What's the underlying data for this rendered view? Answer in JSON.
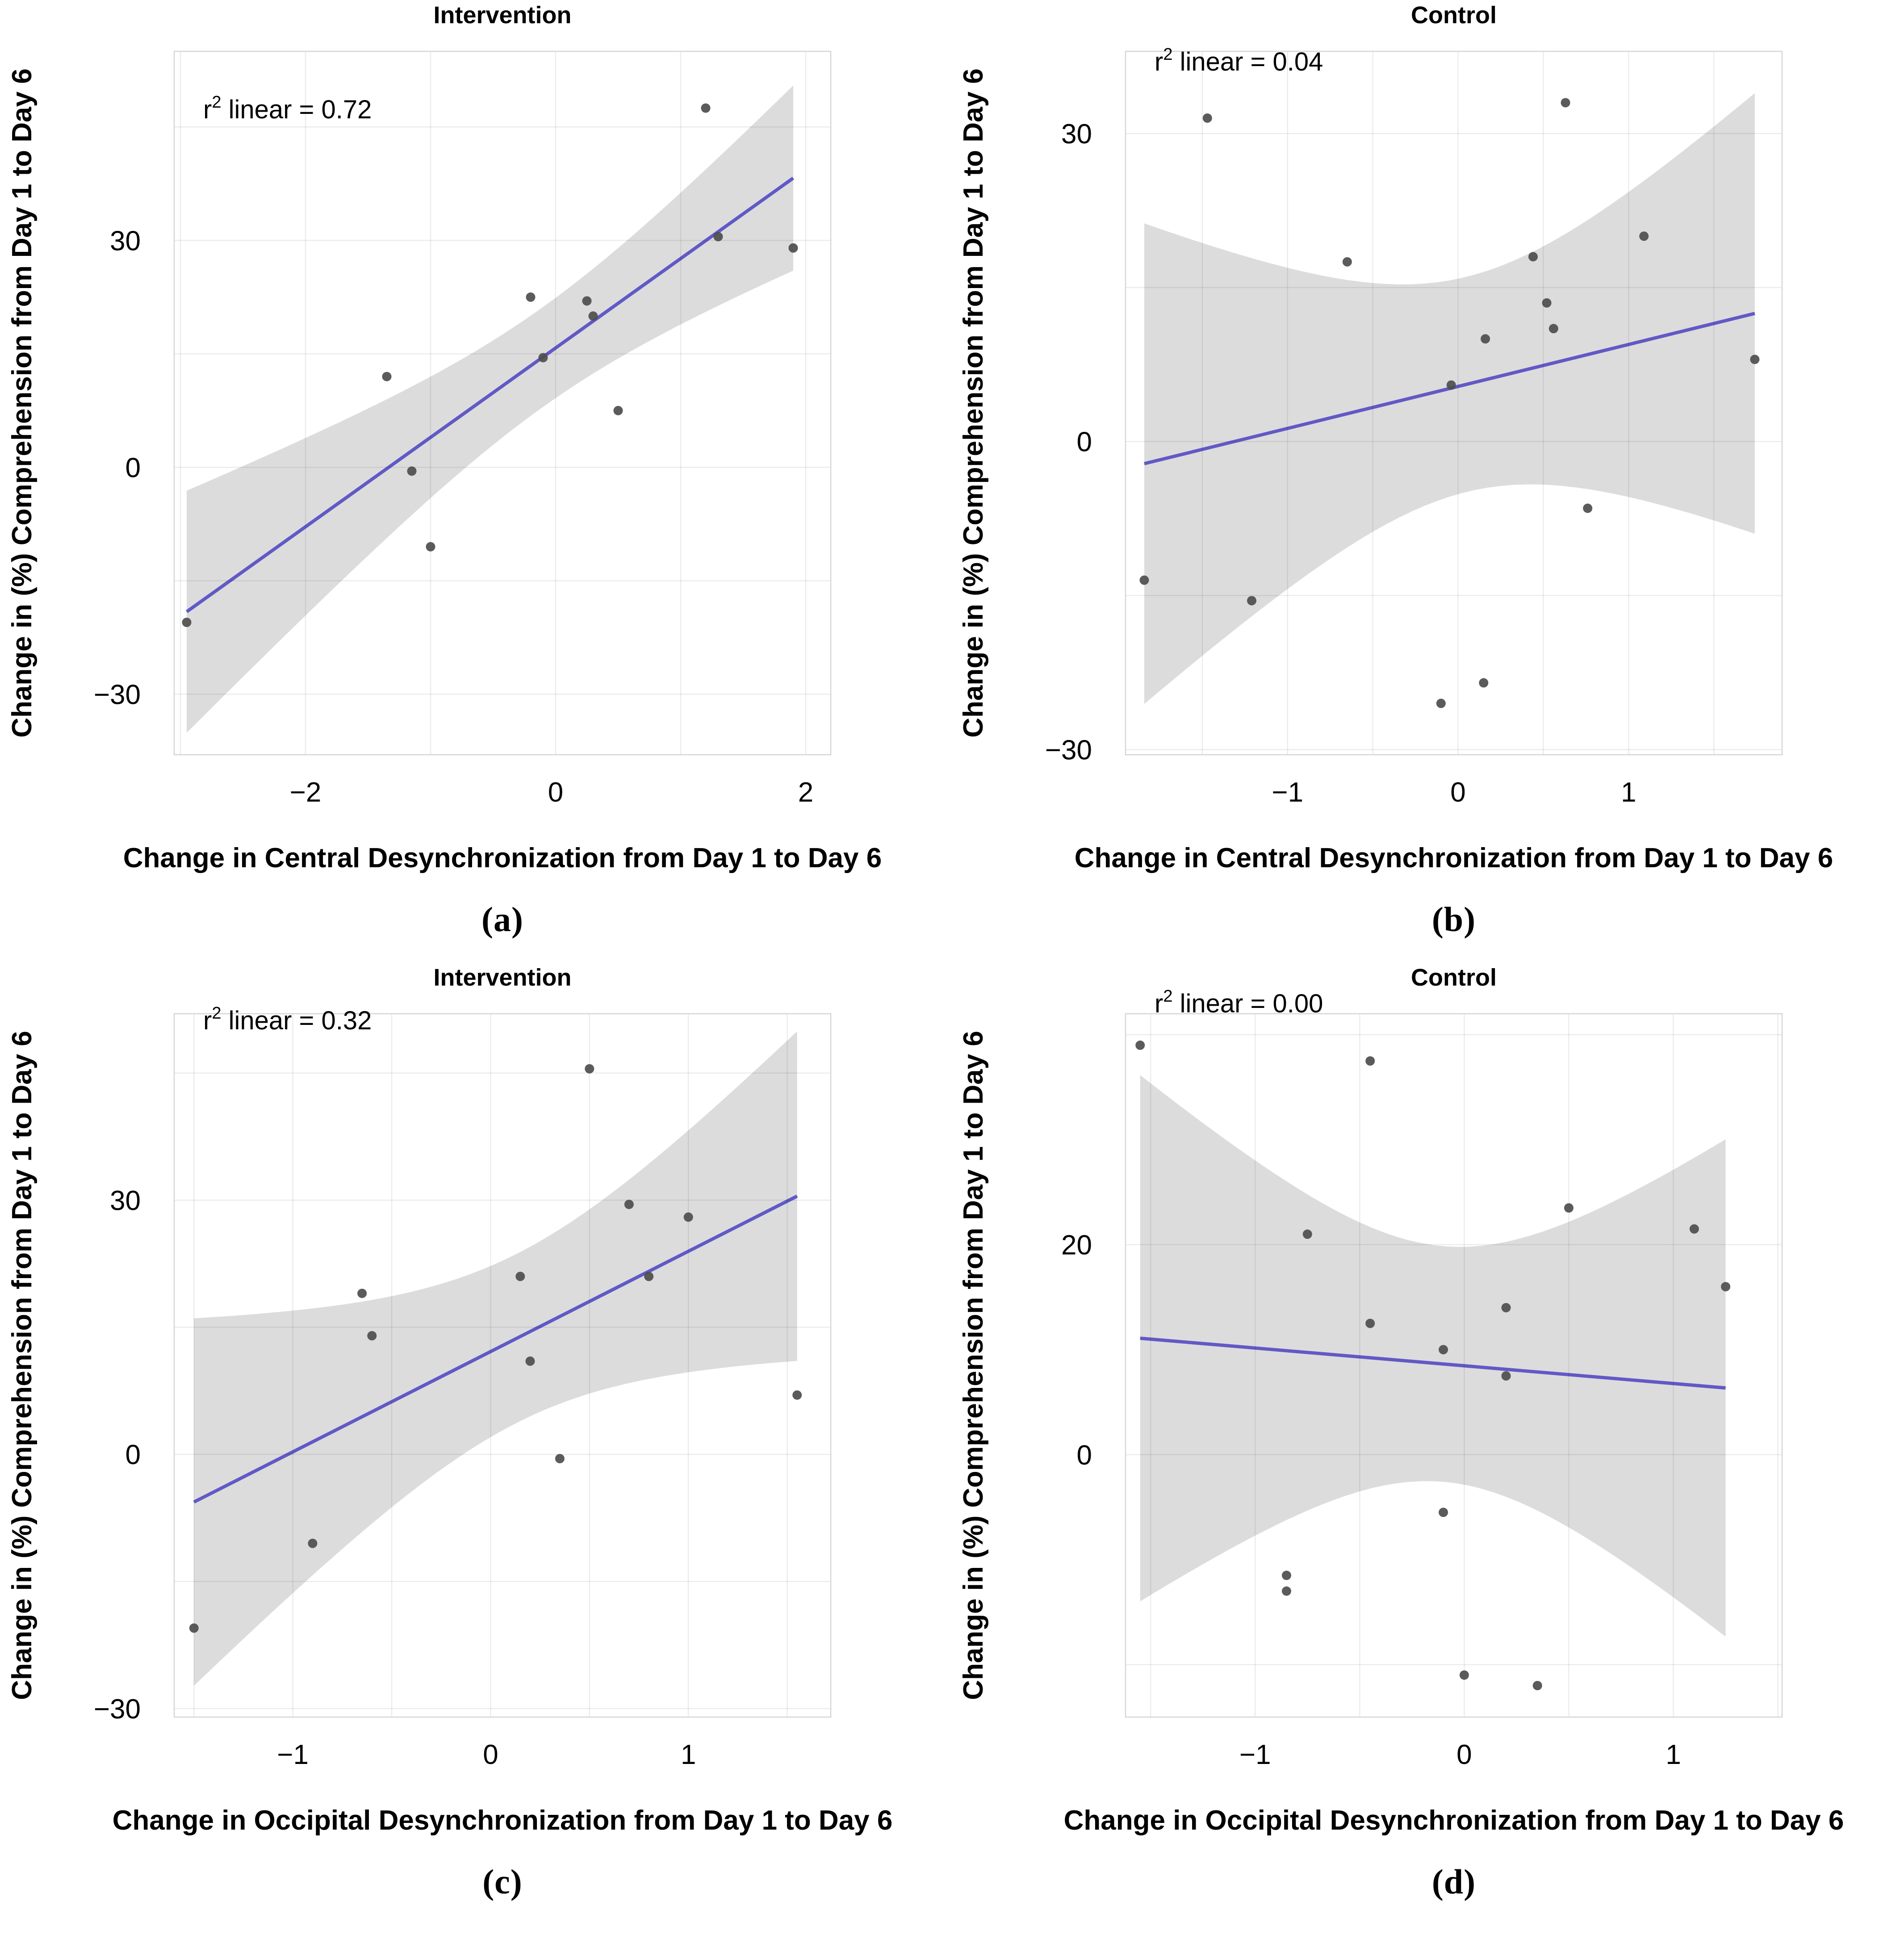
{
  "figure": {
    "background": "#ffffff",
    "colors": {
      "fit_line": "#6159c6",
      "point": "#4d4d4d",
      "ci_band": "#dcdcdc",
      "gridline_alpha": 0.075,
      "axis_frame": "#d6d6d6",
      "text": "#000000"
    }
  },
  "chart_data": [
    {
      "panel": "a",
      "type": "scatter",
      "title": "Intervention",
      "annotation": {
        "base": "r",
        "sup": "2",
        "rest": " linear = 0.72"
      },
      "r2": 0.72,
      "xlabel": "Change in Central Desynchronization from Day 1 to Day 6",
      "ylabel": "Change in (%) Comprehension from Day 1 to Day 6",
      "caption": "(a)",
      "xlim": [
        -3.05,
        2.2
      ],
      "ylim": [
        -38,
        55
      ],
      "xticks": [
        {
          "value": -2,
          "label": "−2"
        },
        {
          "value": 0,
          "label": "0"
        },
        {
          "value": 2,
          "label": "2"
        }
      ],
      "yticks": [
        {
          "value": 30,
          "label": "30"
        },
        {
          "value": 0,
          "label": "0"
        },
        {
          "value": -30,
          "label": "−30"
        }
      ],
      "grid_x_step": 1,
      "grid_y_step": 15,
      "fit_ci": "95% mean CI",
      "points": [
        [
          -2.95,
          -20.5
        ],
        [
          -1.35,
          12
        ],
        [
          -1.15,
          -0.5
        ],
        [
          -1.0,
          -10.5
        ],
        [
          -0.2,
          22.5
        ],
        [
          -0.1,
          14.5
        ],
        [
          0.25,
          22
        ],
        [
          0.3,
          20
        ],
        [
          0.5,
          7.5
        ],
        [
          1.2,
          47.5
        ],
        [
          1.3,
          30.5
        ],
        [
          1.9,
          29
        ]
      ]
    },
    {
      "panel": "b",
      "type": "scatter",
      "title": "Control",
      "annotation": {
        "base": "r",
        "sup": "2",
        "rest": " linear = 0.04"
      },
      "r2": 0.04,
      "xlabel": "Change in Central Desynchronization from Day 1 to Day 6",
      "ylabel": "Change in (%) Comprehension from Day 1 to Day 6",
      "caption": "(b)",
      "xlim": [
        -1.95,
        1.9
      ],
      "ylim": [
        -30.5,
        38
      ],
      "xticks": [
        {
          "value": -1,
          "label": "−1"
        },
        {
          "value": 0,
          "label": "0"
        },
        {
          "value": 1,
          "label": "1"
        }
      ],
      "yticks": [
        {
          "value": 30,
          "label": "30"
        },
        {
          "value": 0,
          "label": "0"
        },
        {
          "value": -30,
          "label": "−30"
        }
      ],
      "grid_x_step": 0.5,
      "grid_y_step": 15,
      "fit_ci": "95% mean CI",
      "points": [
        [
          -1.84,
          -13.5
        ],
        [
          -1.47,
          31.5
        ],
        [
          -1.21,
          -15.5
        ],
        [
          -0.65,
          17.5
        ],
        [
          -0.1,
          -25.5
        ],
        [
          -0.04,
          5.5
        ],
        [
          0.15,
          -23.5
        ],
        [
          0.16,
          10
        ],
        [
          0.44,
          18
        ],
        [
          0.52,
          13.5
        ],
        [
          0.56,
          11
        ],
        [
          0.63,
          33
        ],
        [
          0.76,
          -6.5
        ],
        [
          1.09,
          20
        ],
        [
          1.74,
          8
        ]
      ]
    },
    {
      "panel": "c",
      "type": "scatter",
      "title": "Intervention",
      "annotation": {
        "base": "r",
        "sup": "2",
        "rest": " linear = 0.32"
      },
      "r2": 0.32,
      "xlabel": "Change in Occipital Desynchronization from Day 1 to Day 6",
      "ylabel": "Change in (%) Comprehension from Day 1 to Day 6",
      "caption": "(c)",
      "xlim": [
        -1.6,
        1.72
      ],
      "ylim": [
        -31,
        52
      ],
      "xticks": [
        {
          "value": -1,
          "label": "−1"
        },
        {
          "value": 0,
          "label": "0"
        },
        {
          "value": 1,
          "label": "1"
        }
      ],
      "yticks": [
        {
          "value": 30,
          "label": "30"
        },
        {
          "value": 0,
          "label": "0"
        },
        {
          "value": -30,
          "label": "−30"
        }
      ],
      "grid_x_step": 0.5,
      "grid_y_step": 15,
      "fit_ci": "95% mean CI",
      "points": [
        [
          -1.5,
          -20.5
        ],
        [
          -0.9,
          -10.5
        ],
        [
          -0.65,
          19
        ],
        [
          -0.6,
          14
        ],
        [
          0.15,
          21
        ],
        [
          0.2,
          11
        ],
        [
          0.35,
          -0.5
        ],
        [
          0.5,
          45.5
        ],
        [
          0.7,
          29.5
        ],
        [
          0.8,
          21
        ],
        [
          1.0,
          28
        ],
        [
          1.55,
          7
        ]
      ]
    },
    {
      "panel": "d",
      "type": "scatter",
      "title": "Control",
      "annotation": {
        "base": "r",
        "sup": "2",
        "rest": " linear = 0.00"
      },
      "r2": 0.0,
      "xlabel": "Change in Occipital Desynchronization from Day 1 to Day 6",
      "ylabel": "Change in (%) Comprehension from Day 1 to Day 6",
      "caption": "(d)",
      "xlim": [
        -1.62,
        1.52
      ],
      "ylim": [
        -25,
        42
      ],
      "xticks": [
        {
          "value": -1,
          "label": "−1"
        },
        {
          "value": 0,
          "label": "0"
        },
        {
          "value": 1,
          "label": "1"
        }
      ],
      "yticks": [
        {
          "value": 20,
          "label": "20"
        },
        {
          "value": 0,
          "label": "0"
        }
      ],
      "grid_x_step": 0.5,
      "grid_y_step": 20,
      "fit_ci": "95% mean CI",
      "points": [
        [
          -1.55,
          39
        ],
        [
          -0.85,
          -11.5
        ],
        [
          -0.85,
          -13
        ],
        [
          -0.75,
          21
        ],
        [
          -0.45,
          37.5
        ],
        [
          -0.45,
          12.5
        ],
        [
          -0.1,
          10
        ],
        [
          -0.1,
          -5.5
        ],
        [
          0.0,
          -21
        ],
        [
          0.2,
          14
        ],
        [
          0.2,
          7.5
        ],
        [
          0.35,
          -22
        ],
        [
          0.5,
          23.5
        ],
        [
          1.1,
          21.5
        ],
        [
          1.25,
          16
        ]
      ]
    }
  ]
}
